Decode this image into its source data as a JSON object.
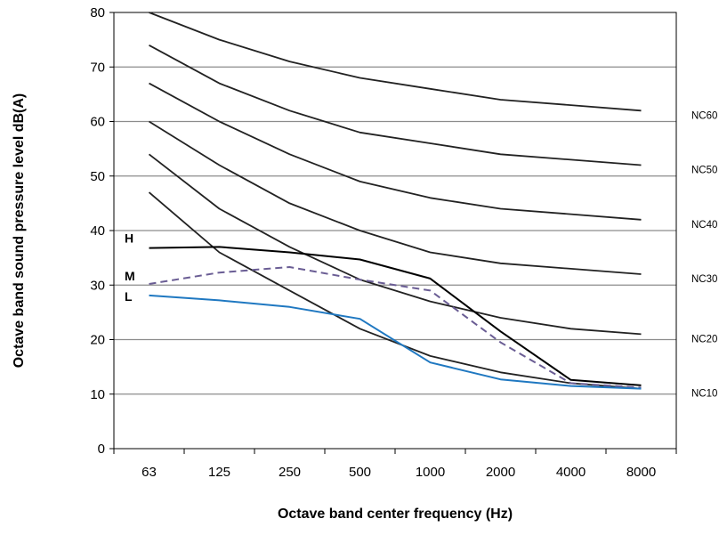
{
  "chart_data": {
    "type": "line",
    "title": "",
    "xlabel": "Octave band center frequency (Hz)",
    "ylabel": "Octave band sound pressure level dB(A)",
    "categories": [
      "63",
      "125",
      "250",
      "500",
      "1000",
      "2000",
      "4000",
      "8000"
    ],
    "yticks": [
      "0",
      "10",
      "20",
      "30",
      "40",
      "50",
      "60",
      "70",
      "80"
    ],
    "ylim": [
      0,
      80
    ],
    "grid": true,
    "nc_curves": [
      {
        "name": "NC60",
        "values": [
          80,
          75,
          71,
          68,
          66,
          64,
          63,
          62
        ],
        "color": "#222222"
      },
      {
        "name": "NC50",
        "values": [
          74,
          67,
          62,
          58,
          56,
          54,
          53,
          52
        ],
        "color": "#222222"
      },
      {
        "name": "NC40",
        "values": [
          67,
          60,
          54,
          49,
          46,
          44,
          43,
          42
        ],
        "color": "#222222"
      },
      {
        "name": "NC30",
        "values": [
          60,
          52,
          45,
          40,
          36,
          34,
          33,
          32
        ],
        "color": "#222222"
      },
      {
        "name": "NC20",
        "values": [
          54,
          44,
          37,
          31,
          27,
          24,
          22,
          21
        ],
        "color": "#222222"
      },
      {
        "name": "NC10",
        "values": [
          47,
          36,
          29,
          22,
          17,
          14,
          12,
          11
        ],
        "color": "#222222"
      }
    ],
    "series": [
      {
        "name": "H",
        "values": [
          36.8,
          37.0,
          36.0,
          34.7,
          31.2,
          21.5,
          12.6,
          11.6
        ],
        "color": "#000000",
        "style": "solid"
      },
      {
        "name": "M",
        "values": [
          30.2,
          32.3,
          33.3,
          31.0,
          29.0,
          19.5,
          12.0,
          11.2
        ],
        "color": "#6a5d94",
        "style": "dashed"
      },
      {
        "name": "L",
        "values": [
          28.1,
          27.2,
          26.0,
          23.8,
          15.8,
          12.7,
          11.5,
          11.0
        ],
        "color": "#1f78c1",
        "style": "solid"
      }
    ]
  }
}
